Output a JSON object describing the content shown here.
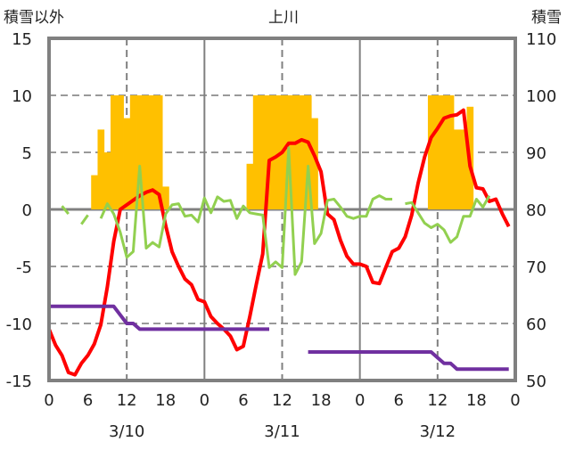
{
  "chart_data": {
    "type": "bar+line",
    "title": "上川",
    "ylabel_left": "積雪以外",
    "ylabel_right": "積雪",
    "ylim_left": [
      -15,
      15
    ],
    "yticks_left": [
      "15",
      "10",
      "5",
      "0",
      "-5",
      "-10",
      "-15"
    ],
    "ylim_right": [
      50,
      110
    ],
    "yticks_right": [
      "110",
      "100",
      "90",
      "80",
      "70",
      "60",
      "50"
    ],
    "xlim_hours": [
      0,
      72
    ],
    "xtick_labels": [
      "0",
      "6",
      "12",
      "18",
      "0",
      "6",
      "12",
      "18",
      "0",
      "6",
      "12",
      "18",
      "0"
    ],
    "date_labels": [
      "3/10",
      "3/11",
      "3/12"
    ],
    "grid": true,
    "colors": {
      "bars": "#FFC000",
      "red": "#FF0000",
      "green": "#92D050",
      "purple": "#7030A0",
      "axis": "#808080"
    },
    "bars": {
      "axis": "left",
      "hours": [
        7,
        8,
        9,
        10,
        11,
        12,
        13,
        14,
        15,
        16,
        17,
        18,
        31,
        32,
        33,
        34,
        35,
        36,
        37,
        38,
        39,
        40,
        41,
        59,
        60,
        61,
        62,
        63,
        64,
        65
      ],
      "values": [
        3,
        7,
        5,
        10,
        10,
        8,
        10,
        10,
        10,
        10,
        10,
        2,
        4,
        10,
        10,
        10,
        10,
        10,
        10,
        10,
        10,
        10,
        8,
        10,
        10,
        10,
        10,
        7,
        7,
        9
      ]
    },
    "series": [
      {
        "name": "red",
        "axis": "left",
        "start_hour": 0,
        "values": [
          -10.5,
          -11.9,
          -12.8,
          -14.3,
          -14.5,
          -13.5,
          -12.8,
          -11.8,
          -10.1,
          -6.8,
          -2.8,
          0.0,
          0.4,
          0.8,
          1.2,
          1.5,
          1.7,
          1.3,
          -1.4,
          -3.7,
          -5.0,
          -6.1,
          -6.6,
          -7.9,
          -8.1,
          -9.4,
          -10.0,
          -10.5,
          -11.1,
          -12.3,
          -12.0,
          -9.4,
          -6.6,
          -3.9,
          4.3,
          4.6,
          5.0,
          5.8,
          5.8,
          6.1,
          5.9,
          4.7,
          3.3,
          -0.4,
          -0.9,
          -2.7,
          -4.1,
          -4.8,
          -4.8,
          -5.0,
          -6.4,
          -6.5,
          -5.1,
          -3.7,
          -3.4,
          -2.4,
          -0.5,
          2.3,
          4.6,
          6.3,
          7.1,
          8.0,
          8.2,
          8.3,
          8.7,
          3.8,
          1.9,
          1.8,
          0.7,
          0.9,
          -0.4,
          -1.5
        ]
      },
      {
        "name": "green",
        "axis": "left",
        "start_hour": 0,
        "values": [
          null,
          null,
          0.3,
          -0.4,
          null,
          -1.3,
          -0.5,
          null,
          -0.8,
          0.5,
          -0.4,
          -2.0,
          -4.2,
          -3.7,
          3.8,
          -3.4,
          -2.9,
          -3.3,
          -0.4,
          0.4,
          0.5,
          -0.6,
          -0.5,
          -1.1,
          1.0,
          -0.3,
          1.1,
          0.7,
          0.8,
          -0.8,
          0.3,
          -0.3,
          -0.4,
          -0.5,
          -5.1,
          -4.6,
          -5.1,
          5.4,
          -5.7,
          -4.6,
          3.8,
          -3.0,
          -2.1,
          0.8,
          0.9,
          0.2,
          -0.6,
          -0.8,
          -0.6,
          -0.6,
          0.9,
          1.2,
          0.9,
          0.9,
          null,
          0.5,
          0.6,
          -0.3,
          -1.2,
          -1.6,
          -1.3,
          -1.8,
          -2.9,
          -2.4,
          -0.6,
          -0.6,
          0.9,
          0.2,
          1.2
        ]
      },
      {
        "name": "purple",
        "axis": "right",
        "start_hour": 0,
        "values": [
          63,
          63,
          63,
          63,
          63,
          63,
          63,
          63,
          63,
          63,
          63,
          61.5,
          60,
          60,
          59,
          59,
          59,
          59,
          59,
          59,
          59,
          59,
          59,
          59,
          59,
          59,
          59,
          59,
          59,
          59,
          59,
          59,
          59,
          59,
          59,
          null,
          null,
          null,
          null,
          null,
          55,
          55,
          55,
          55,
          55,
          55,
          55,
          55,
          55,
          55,
          55,
          55,
          55,
          55,
          55,
          55,
          55,
          55,
          55,
          55,
          54,
          53,
          53,
          52,
          52,
          52,
          52,
          52,
          52,
          52,
          52,
          52
        ]
      }
    ]
  }
}
